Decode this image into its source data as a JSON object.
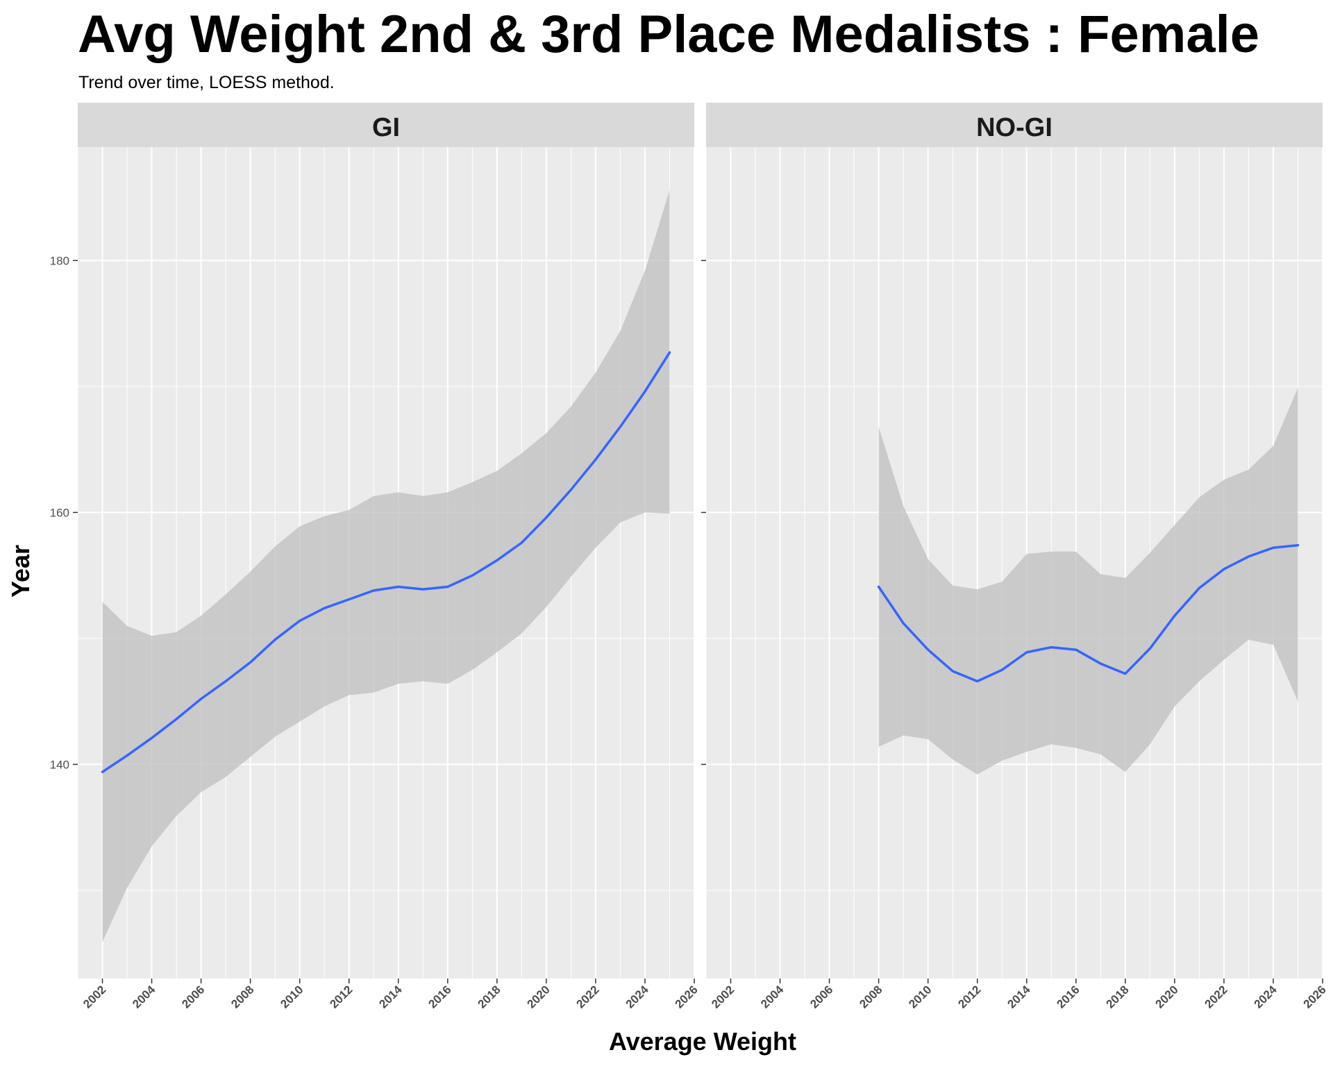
{
  "chart_data": {
    "type": "line",
    "title": "Avg Weight 2nd & 3rd Place Medalists : Female",
    "subtitle": "Trend over time, LOESS method.",
    "xlabel": "Average Weight",
    "ylabel": "Year",
    "xlim": [
      2001,
      2026
    ],
    "ylim": [
      123,
      189
    ],
    "x_ticks": [
      2002,
      2004,
      2006,
      2008,
      2010,
      2012,
      2014,
      2016,
      2018,
      2020,
      2022,
      2024,
      2026
    ],
    "y_ticks": [
      140,
      160,
      180
    ],
    "grid": true,
    "colors": {
      "line": "#3366ff",
      "ribbon": "#bdbdbd",
      "panel": "#ebebeb",
      "strip": "#d9d9d9",
      "grid": "#ffffff"
    },
    "panels": [
      {
        "name": "GI",
        "x": [
          2002,
          2003,
          2004,
          2005,
          2006,
          2007,
          2008,
          2009,
          2010,
          2011,
          2012,
          2013,
          2014,
          2015,
          2016,
          2017,
          2018,
          2019,
          2020,
          2021,
          2022,
          2023,
          2024,
          2025
        ],
        "y": [
          139.4,
          140.7,
          142.1,
          143.6,
          145.2,
          146.6,
          148.1,
          149.9,
          151.4,
          152.4,
          153.1,
          153.8,
          154.1,
          153.9,
          154.1,
          155.0,
          156.2,
          157.6,
          159.6,
          161.8,
          164.2,
          166.8,
          169.6,
          172.7
        ],
        "lower": [
          125.9,
          130.2,
          133.5,
          135.9,
          137.8,
          139.0,
          140.6,
          142.2,
          143.4,
          144.6,
          145.5,
          145.7,
          146.4,
          146.6,
          146.4,
          147.5,
          148.9,
          150.4,
          152.5,
          154.9,
          157.2,
          159.2,
          160.0,
          159.9
        ],
        "upper": [
          152.9,
          151.0,
          150.2,
          150.5,
          151.8,
          153.5,
          155.3,
          157.3,
          158.9,
          159.7,
          160.2,
          161.3,
          161.6,
          161.3,
          161.6,
          162.4,
          163.3,
          164.7,
          166.3,
          168.4,
          171.1,
          174.4,
          179.2,
          185.6
        ]
      },
      {
        "name": "NO-GI",
        "x": [
          2008,
          2009,
          2010,
          2011,
          2012,
          2013,
          2014,
          2015,
          2016,
          2017,
          2018,
          2019,
          2020,
          2021,
          2022,
          2023,
          2024,
          2025
        ],
        "y": [
          154.1,
          151.2,
          149.1,
          147.4,
          146.6,
          147.5,
          148.9,
          149.3,
          149.1,
          148.0,
          147.2,
          149.2,
          151.8,
          154.0,
          155.5,
          156.5,
          157.2,
          157.4
        ],
        "lower": [
          141.4,
          142.3,
          142.0,
          140.4,
          139.2,
          140.3,
          141.0,
          141.6,
          141.3,
          140.8,
          139.4,
          141.6,
          144.6,
          146.6,
          148.3,
          149.9,
          149.5,
          145.0
        ],
        "upper": [
          166.8,
          160.5,
          156.3,
          154.2,
          153.9,
          154.5,
          156.7,
          156.9,
          156.9,
          155.1,
          154.8,
          156.8,
          159.0,
          161.2,
          162.6,
          163.4,
          165.3,
          169.9
        ]
      }
    ]
  }
}
